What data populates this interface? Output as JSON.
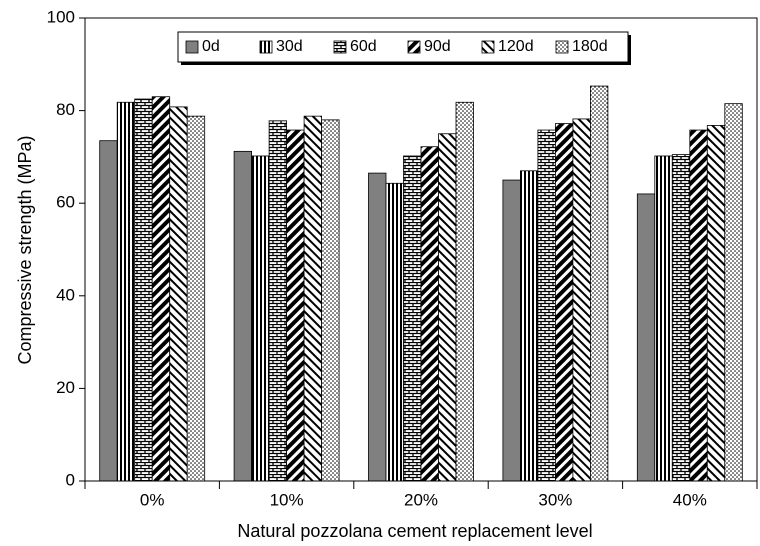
{
  "chart_data": {
    "type": "bar",
    "x_label": "Natural pozzolana cement replacement level",
    "y_label": "Compressive strength (MPa)",
    "categories": [
      "0%",
      "10%",
      "20%",
      "30%",
      "40%"
    ],
    "series": [
      {
        "name": "0d",
        "color": "#808080",
        "pattern": "solid",
        "values": [
          73.5,
          71.2,
          66.5,
          65.0,
          62.0
        ]
      },
      {
        "name": "30d",
        "color": "#000000",
        "pattern": "vertical",
        "values": [
          81.8,
          70.2,
          64.3,
          67.0,
          70.2
        ]
      },
      {
        "name": "60d",
        "color": "#000000",
        "pattern": "brick",
        "values": [
          82.5,
          77.8,
          70.2,
          75.8,
          70.5
        ]
      },
      {
        "name": "90d",
        "color": "#000000",
        "pattern": "diagonal-down",
        "values": [
          83.0,
          75.8,
          72.2,
          77.2,
          75.8
        ]
      },
      {
        "name": "120d",
        "color": "#000000",
        "pattern": "diagonal-up",
        "values": [
          80.8,
          78.8,
          75.0,
          78.2,
          76.8
        ]
      },
      {
        "name": "180d",
        "color": "#000000",
        "pattern": "dots",
        "values": [
          78.8,
          78.0,
          81.8,
          85.3,
          81.5
        ]
      }
    ],
    "ylim": [
      0,
      100
    ],
    "yticks": [
      0,
      20,
      40,
      60,
      80,
      100
    ],
    "grid": false,
    "legend": "top"
  }
}
